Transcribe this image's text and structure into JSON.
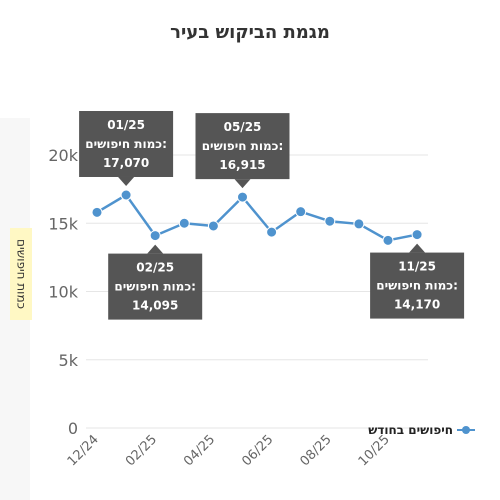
{
  "chart_data": {
    "type": "line",
    "title": "מגמת הביקוש בעיר",
    "ylabel": "כמות חיפושים",
    "xlabel": "",
    "ylim": [
      0,
      20000
    ],
    "y_ticks": [
      {
        "value": 0,
        "label": "0"
      },
      {
        "value": 5000,
        "label": "5k"
      },
      {
        "value": 10000,
        "label": "10k"
      },
      {
        "value": 15000,
        "label": "15k"
      },
      {
        "value": 20000,
        "label": "20k"
      }
    ],
    "x": [
      "12/24",
      "01/25",
      "02/25",
      "03/25",
      "04/25",
      "05/25",
      "06/25",
      "07/25",
      "08/25",
      "09/25",
      "10/25",
      "11/25"
    ],
    "x_tick_labels": [
      "12/24",
      "02/25",
      "04/25",
      "06/25",
      "08/25",
      "10/25"
    ],
    "series": [
      {
        "name": "חיפושים בחודש",
        "color": "#4f93ce",
        "values": [
          15800,
          17070,
          14095,
          15000,
          14800,
          16915,
          14350,
          15850,
          15150,
          14950,
          13750,
          14170
        ]
      }
    ],
    "annotations": [
      {
        "category": "01/25",
        "month": "01/25",
        "label": "כמות חיפושים:",
        "value": "17,070",
        "position": "above"
      },
      {
        "category": "02/25",
        "month": "02/25",
        "label": "כמות חיפושים:",
        "value": "14,095",
        "position": "below"
      },
      {
        "category": "05/25",
        "month": "05/25",
        "label": "כמות חיפושים:",
        "value": "16,915",
        "position": "above"
      },
      {
        "category": "11/25",
        "month": "11/25",
        "label": "כמות חיפושים:",
        "value": "14,170",
        "position": "below"
      }
    ],
    "grid": true,
    "legend_position": "right"
  }
}
